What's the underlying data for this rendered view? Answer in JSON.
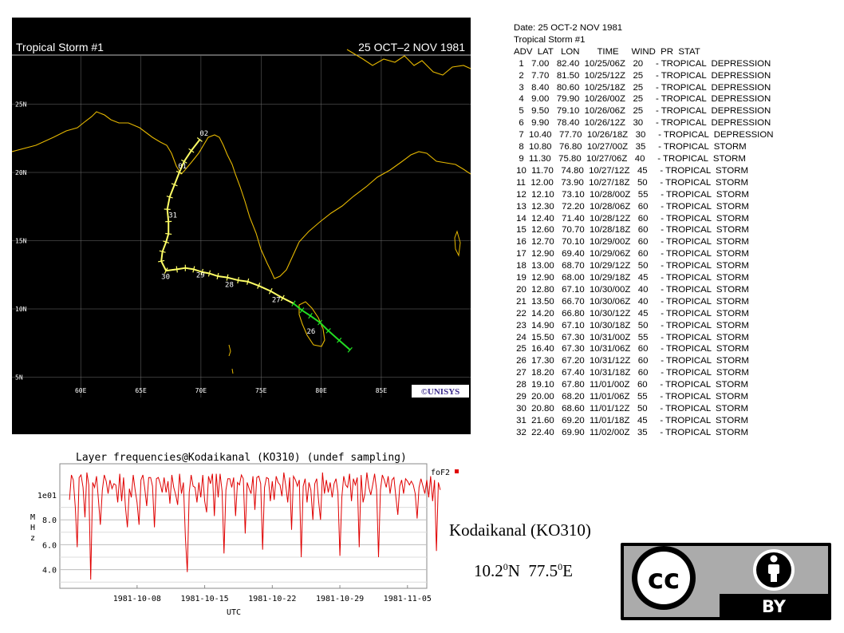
{
  "map": {
    "title": "Tropical Storm #1",
    "date_range": "25 OCT–2 NOV 1981",
    "logo_text": "©UNISYS",
    "lat_labels": [
      "25N",
      "20N",
      "15N",
      "10N",
      "5N"
    ],
    "lon_labels": [
      "60E",
      "65E",
      "70E",
      "75E",
      "80E",
      "85E"
    ],
    "track_day_labels": [
      "02",
      "01",
      "31",
      "30",
      "29",
      "28",
      "27",
      "26"
    ],
    "colors": {
      "background": "#000000",
      "grid": "#6e6e6e",
      "coast": "#e6b800",
      "storm": "#ffff66",
      "depression": "#22dd22",
      "label": "#ffffff"
    }
  },
  "advisory": {
    "date_line": "Date: 25 OCT-2 NOV 1981",
    "storm_line": "Tropical Storm #1",
    "header": "ADV  LAT   LON       TIME     WIND  PR  STAT",
    "rows": [
      "  1   7.00   82.40  10/25/06Z   20     - TROPICAL  DEPRESSION",
      "  2   7.70   81.50  10/25/12Z   25     - TROPICAL  DEPRESSION",
      "  3   8.40   80.60  10/25/18Z   25     - TROPICAL  DEPRESSION",
      "  4   9.00   79.90  10/26/00Z   25     - TROPICAL  DEPRESSION",
      "  5   9.50   79.10  10/26/06Z   25     - TROPICAL  DEPRESSION",
      "  6   9.90   78.40  10/26/12Z   30     - TROPICAL  DEPRESSION",
      "  7  10.40   77.70  10/26/18Z   30     - TROPICAL  DEPRESSION",
      "  8  10.80   76.80  10/27/00Z   35     - TROPICAL  STORM",
      "  9  11.30   75.80  10/27/06Z   40     - TROPICAL  STORM",
      " 10  11.70   74.80  10/27/12Z   45     - TROPICAL  STORM",
      " 11  12.00   73.90  10/27/18Z   50     - TROPICAL  STORM",
      " 12  12.10   73.10  10/28/00Z   55     - TROPICAL  STORM",
      " 13  12.30   72.20  10/28/06Z   60     - TROPICAL  STORM",
      " 14  12.40   71.40  10/28/12Z   60     - TROPICAL  STORM",
      " 15  12.60   70.70  10/28/18Z   60     - TROPICAL  STORM",
      " 16  12.70   70.10  10/29/00Z   60     - TROPICAL  STORM",
      " 17  12.90   69.40  10/29/06Z   60     - TROPICAL  STORM",
      " 18  13.00   68.70  10/29/12Z   50     - TROPICAL  STORM",
      " 19  12.90   68.00  10/29/18Z   45     - TROPICAL  STORM",
      " 20  12.80   67.10  10/30/00Z   40     - TROPICAL  STORM",
      " 21  13.50   66.70  10/30/06Z   40     - TROPICAL  STORM",
      " 22  14.20   66.80  10/30/12Z   45     - TROPICAL  STORM",
      " 23  14.90   67.10  10/30/18Z   50     - TROPICAL  STORM",
      " 24  15.50   67.30  10/31/00Z   55     - TROPICAL  STORM",
      " 25  16.40   67.30  10/31/06Z   60     - TROPICAL  STORM",
      " 26  17.30   67.20  10/31/12Z   60     - TROPICAL  STORM",
      " 27  18.20   67.40  10/31/18Z   60     - TROPICAL  STORM",
      " 28  19.10   67.80  11/01/00Z   60     - TROPICAL  STORM",
      " 29  20.00   68.20  11/01/06Z   55     - TROPICAL  STORM",
      " 30  20.80   68.60  11/01/12Z   50     - TROPICAL  STORM",
      " 31  21.60   69.20  11/01/18Z   45     - TROPICAL  STORM",
      " 32  22.40   69.90  11/02/00Z   35     - TROPICAL  STORM"
    ]
  },
  "chart_data": [
    {
      "type": "scatter",
      "title": "Tropical Storm #1",
      "subtitle": "25 OCT–2 NOV 1981",
      "xlabel": "",
      "ylabel": "",
      "xlim": [
        57,
        90
      ],
      "ylim": [
        3,
        28
      ],
      "x_ticks": [
        "60E",
        "65E",
        "70E",
        "75E",
        "80E",
        "85E"
      ],
      "y_ticks": [
        "25N",
        "20N",
        "15N",
        "10N",
        "5N"
      ],
      "grid": true,
      "x": [
        82.4,
        81.5,
        80.6,
        79.9,
        79.1,
        78.4,
        77.7,
        76.8,
        75.8,
        74.8,
        73.9,
        73.1,
        72.2,
        71.4,
        70.7,
        70.1,
        69.4,
        68.7,
        68.0,
        67.1,
        66.7,
        66.8,
        67.1,
        67.3,
        67.3,
        67.2,
        67.4,
        67.8,
        68.2,
        68.6,
        69.2,
        69.9
      ],
      "y": [
        7.0,
        7.7,
        8.4,
        9.0,
        9.5,
        9.9,
        10.4,
        10.8,
        11.3,
        11.7,
        12.0,
        12.1,
        12.3,
        12.4,
        12.6,
        12.7,
        12.9,
        13.0,
        12.9,
        12.8,
        13.5,
        14.2,
        14.9,
        15.5,
        16.4,
        17.3,
        18.2,
        19.1,
        20.0,
        20.8,
        21.6,
        22.4
      ],
      "status": [
        "TD",
        "TD",
        "TD",
        "TD",
        "TD",
        "TD",
        "TD",
        "TS",
        "TS",
        "TS",
        "TS",
        "TS",
        "TS",
        "TS",
        "TS",
        "TS",
        "TS",
        "TS",
        "TS",
        "TS",
        "TS",
        "TS",
        "TS",
        "TS",
        "TS",
        "TS",
        "TS",
        "TS",
        "TS",
        "TS",
        "TS",
        "TS"
      ],
      "day_labels": [
        {
          "text": "26",
          "x": 78.8,
          "y": 8.2
        },
        {
          "text": "27",
          "x": 75.9,
          "y": 10.5
        },
        {
          "text": "28",
          "x": 72.0,
          "y": 11.6
        },
        {
          "text": "29",
          "x": 69.6,
          "y": 12.3
        },
        {
          "text": "30",
          "x": 66.7,
          "y": 12.2
        },
        {
          "text": "31",
          "x": 67.3,
          "y": 16.7
        },
        {
          "text": "01",
          "x": 68.1,
          "y": 20.3
        },
        {
          "text": "02",
          "x": 69.9,
          "y": 22.7
        }
      ]
    },
    {
      "type": "line",
      "title": "Layer frequencies@Kodaikanal (KO310) (undef sampling)",
      "xlabel": "UTC",
      "ylabel": "MHz",
      "ylabel_chars": [
        "M",
        "H",
        "z"
      ],
      "y_ticks": [
        "1e01",
        "8.0",
        "6.0",
        "4.0"
      ],
      "y_tick_values": [
        10,
        8,
        6,
        4
      ],
      "ylim": [
        2.5,
        12.5
      ],
      "x_ticks": [
        "1981-10-08",
        "1981-10-15",
        "1981-10-22",
        "1981-10-29",
        "1981-11-05"
      ],
      "x_tick_values": [
        8,
        15,
        22,
        29,
        36
      ],
      "xlim": [
        0,
        38
      ],
      "x_unit": "day since 1981-10-00",
      "series": [
        {
          "name": "foF2",
          "color": "#e00000",
          "x_start": 1.0,
          "x_step": 0.2,
          "values": [
            9.6,
            11.6,
            11.2,
            9.0,
            5.8,
            11.4,
            11.6,
            10.6,
            8.2,
            11.8,
            10.8,
            3.2,
            11.0,
            10.6,
            11.5,
            9.6,
            7.6,
            10.4,
            11.6,
            11.1,
            10.1,
            11.2,
            10.5,
            10.9,
            10.8,
            9.4,
            11.7,
            9.5,
            11.4,
            9.0,
            7.4,
            10.5,
            9.8,
            11.6,
            10.4,
            9.4,
            7.6,
            11.2,
            11.6,
            10.5,
            9.1,
            11.4,
            11.4,
            10.7,
            7.4,
            11.3,
            11.4,
            10.9,
            10.2,
            11.4,
            10.2,
            11.1,
            9.3,
            11.6,
            10.6,
            10.0,
            9.2,
            11.7,
            10.1,
            11.0,
            6.6,
            3.8,
            10.2,
            11.6,
            10.7,
            10.6,
            9.4,
            11.0,
            9.8,
            11.6,
            9.5,
            8.6,
            11.5,
            10.9,
            11.7,
            8.3,
            11.7,
            9.8,
            11.7,
            10.3,
            5.3,
            10.4,
            11.3,
            11.3,
            10.6,
            11.4,
            8.3,
            11.0,
            10.8,
            11.6,
            11.3,
            6.9,
            11.0,
            10.5,
            10.1,
            11.5,
            8.8,
            11.4,
            11.5,
            10.9,
            5.6,
            10.6,
            11.4,
            11.3,
            9.5,
            11.1,
            9.6,
            11.5,
            11.0,
            10.8,
            9.9,
            11.8,
            10.7,
            9.4,
            11.4,
            7.2,
            11.5,
            11.2,
            10.7,
            11.2,
            5.0,
            10.7,
            11.3,
            9.4,
            11.0,
            10.4,
            8.0,
            10.9,
            11.3,
            9.5,
            8.0,
            11.8,
            10.1,
            11.2,
            10.2,
            11.0,
            9.8,
            10.9,
            11.3,
            10.2,
            5.1,
            9.8,
            11.5,
            10.8,
            10.6,
            11.7,
            9.5,
            11.3,
            10.8,
            11.4,
            5.8,
            11.6,
            9.4,
            10.1,
            11.8,
            10.6,
            10.0,
            10.8,
            11.7,
            10.4,
            5.0,
            10.4,
            11.6,
            11.2,
            10.6,
            11.5,
            10.1,
            11.2,
            11.4,
            9.8,
            8.4,
            10.7,
            11.2,
            10.1,
            11.3,
            11.1,
            10.8,
            11.1,
            10.8,
            10.1,
            8.1,
            10.6,
            11.3,
            10.7,
            10.1,
            11.2,
            9.8,
            11.5,
            9.5,
            11.2,
            5.5,
            11.0,
            10.4
          ]
        }
      ]
    }
  ],
  "station": {
    "name": "Kodaikanal (KO310)",
    "lat": "10.2",
    "lat_sup": "0",
    "lat_suffix": "N",
    "lon": "77.5",
    "lon_sup": "0",
    "lon_suffix": "E"
  },
  "license": {
    "cc_text": "cc",
    "by_text": "BY"
  }
}
